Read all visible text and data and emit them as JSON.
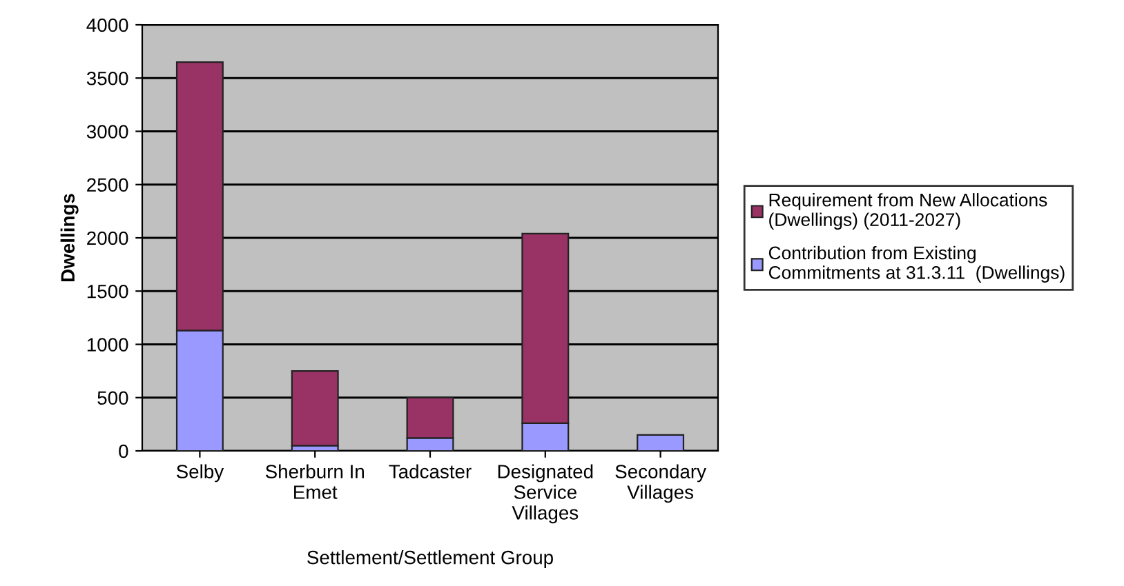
{
  "chart_data": {
    "type": "bar",
    "stacked": true,
    "xlabel": "Settlement/Settlement Group",
    "ylabel": "Dwellings",
    "categories": [
      "Selby",
      "Sherburn In\nEmet",
      "Tadcaster",
      "Designated\nService\nVillages",
      "Secondary\nVillages"
    ],
    "series": [
      {
        "name": "Contribution from Existing\nCommitments at 31.3.11  (Dwellings)",
        "color": "#9999ff",
        "values": [
          1130,
          50,
          120,
          260,
          150
        ]
      },
      {
        "name": "Requirement from New Allocations\n(Dwellings) (2011-2027)",
        "color": "#993366",
        "values": [
          2520,
          700,
          380,
          1780,
          null
        ]
      }
    ],
    "ylim": [
      0,
      4000
    ],
    "yticks": [
      0,
      500,
      1000,
      1500,
      2000,
      2500,
      3000,
      3500,
      4000
    ],
    "grid": "y",
    "legend": "right"
  }
}
